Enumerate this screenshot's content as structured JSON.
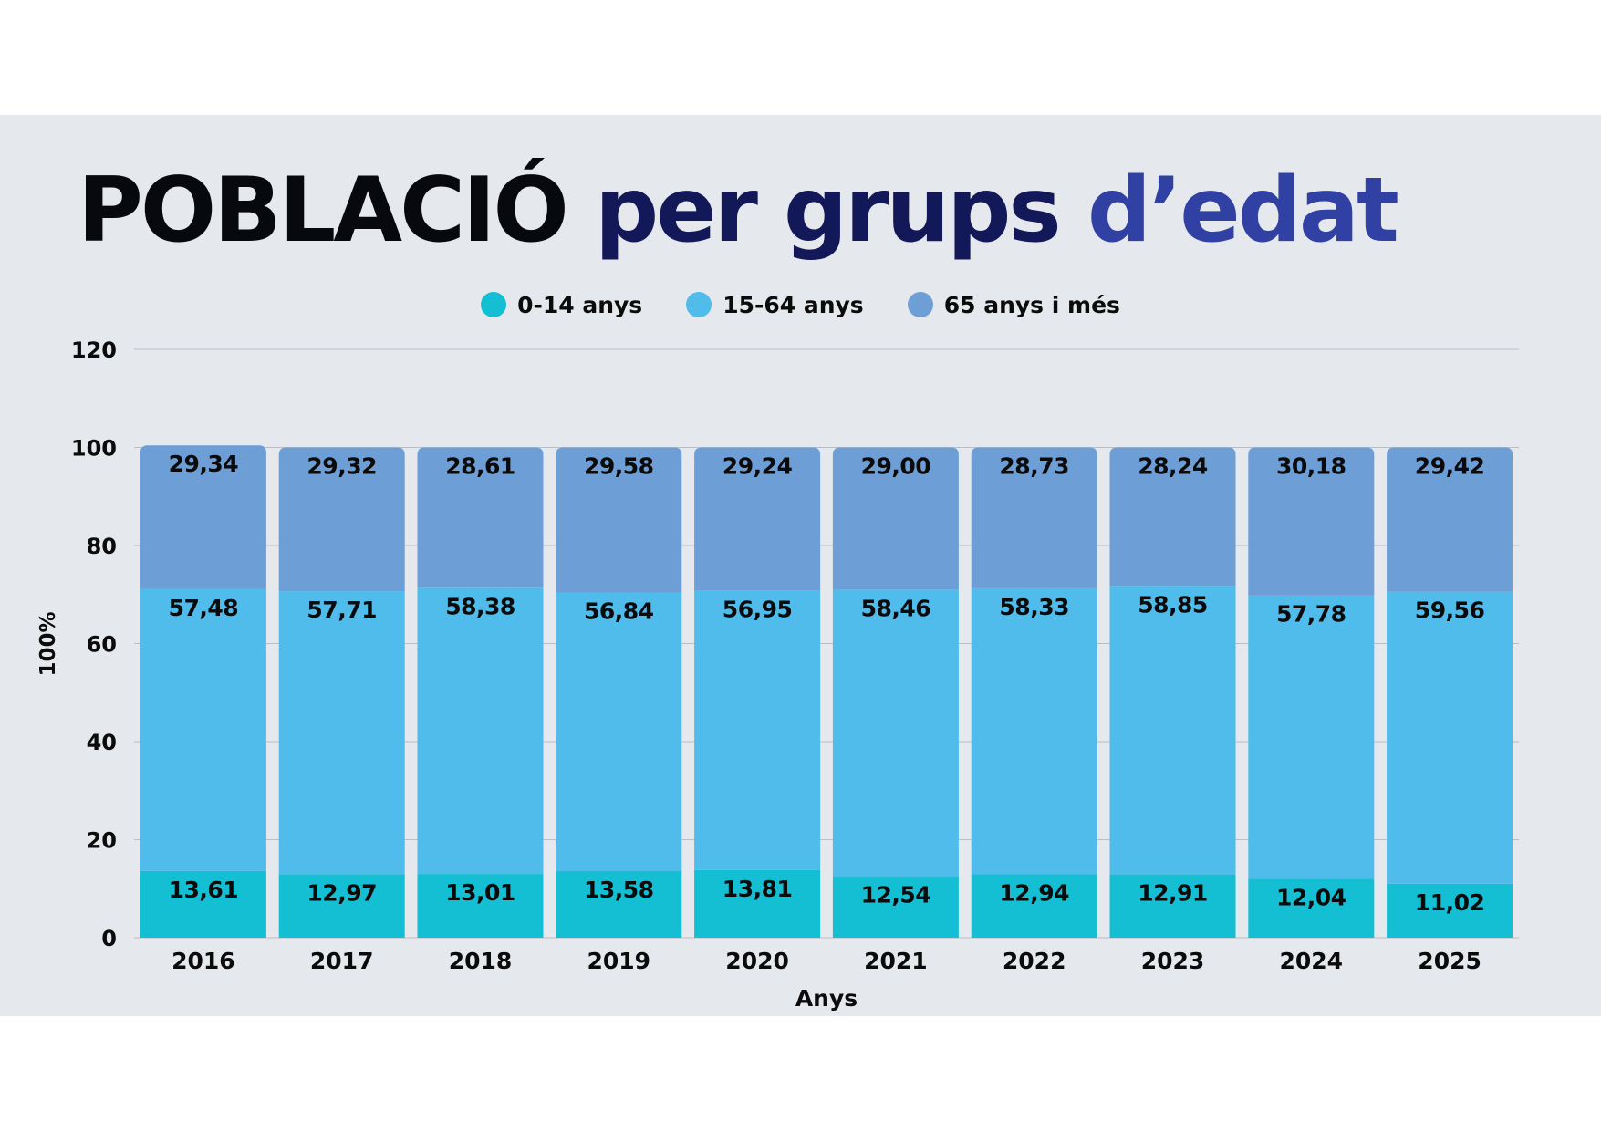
{
  "title": {
    "part1": "POBLACIÓ",
    "part2": "per",
    "part3": "grups",
    "part4": "d’edat"
  },
  "colors": {
    "background": "#e5e8ec",
    "series_0_14": "#14bfd4",
    "series_15_64": "#50bcec",
    "series_65": "#6d9ed6",
    "grid": "#b9bec6"
  },
  "chart_data": {
    "type": "bar",
    "stacked": true,
    "title": "POBLACIÓ per grups d’edat",
    "xlabel": "Anys",
    "ylabel": "100%",
    "ylim": [
      0,
      120
    ],
    "yticks": [
      0,
      20,
      40,
      60,
      80,
      100,
      120
    ],
    "legend_position": "top-center",
    "grid": true,
    "categories": [
      "2016",
      "2017",
      "2018",
      "2019",
      "2020",
      "2021",
      "2022",
      "2023",
      "2024",
      "2025"
    ],
    "series": [
      {
        "name": "0-14 anys",
        "color": "#14bfd4",
        "values": [
          13.61,
          12.97,
          13.01,
          13.58,
          13.81,
          12.54,
          12.94,
          12.91,
          12.04,
          11.02
        ],
        "labels": [
          "13,61",
          "12,97",
          "13,01",
          "13,58",
          "13,81",
          "12,54",
          "12,94",
          "12,91",
          "12,04",
          "11,02"
        ]
      },
      {
        "name": "15-64 anys",
        "color": "#50bcec",
        "values": [
          57.48,
          57.71,
          58.38,
          56.84,
          56.95,
          58.46,
          58.33,
          58.85,
          57.78,
          59.56
        ],
        "labels": [
          "57,48",
          "57,71",
          "58,38",
          "56,84",
          "56,95",
          "58,46",
          "58,33",
          "58,85",
          "57,78",
          "59,56"
        ]
      },
      {
        "name": "65 anys i més",
        "color": "#6d9ed6",
        "values": [
          29.34,
          29.32,
          28.61,
          29.58,
          29.24,
          29.0,
          28.73,
          28.24,
          30.18,
          29.42
        ],
        "labels": [
          "29,34",
          "29,32",
          "28,61",
          "29,58",
          "29,24",
          "29,00",
          "28,73",
          "28,24",
          "30,18",
          "29,42"
        ]
      }
    ]
  }
}
